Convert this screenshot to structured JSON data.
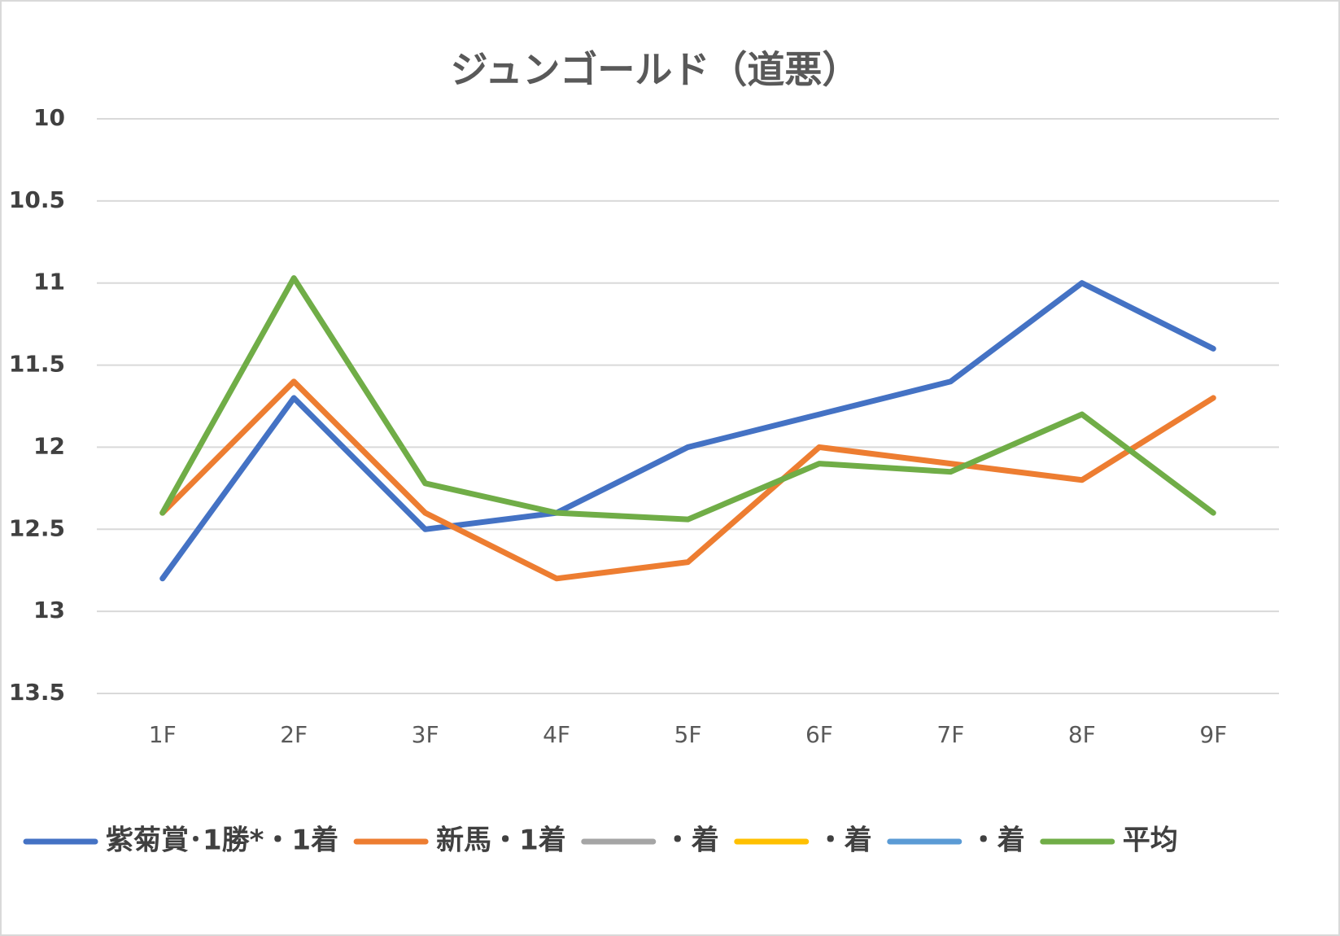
{
  "chart_data": {
    "type": "line",
    "title": "ジュンゴールド（道悪）",
    "categories": [
      "1F",
      "2F",
      "3F",
      "4F",
      "5F",
      "6F",
      "7F",
      "8F",
      "9F"
    ],
    "series": [
      {
        "name": "紫菊賞･1勝*・1着",
        "color": "#4472c4",
        "values": [
          12.8,
          11.7,
          12.5,
          12.4,
          12.0,
          11.8,
          11.6,
          11.0,
          11.4
        ]
      },
      {
        "name": "新馬・1着",
        "color": "#ed7d31",
        "values": [
          12.4,
          11.6,
          12.4,
          12.8,
          12.7,
          12.0,
          12.1,
          12.2,
          11.7
        ]
      },
      {
        "name": "・着",
        "color": "#a5a5a5",
        "values": [
          null,
          null,
          null,
          null,
          null,
          null,
          null,
          null,
          null
        ]
      },
      {
        "name": "・着",
        "color": "#ffc000",
        "values": [
          null,
          null,
          null,
          null,
          null,
          null,
          null,
          null,
          null
        ]
      },
      {
        "name": "・着",
        "color": "#5b9bd5",
        "values": [
          null,
          null,
          null,
          null,
          null,
          null,
          null,
          null,
          null
        ]
      },
      {
        "name": "平均",
        "color": "#70ad47",
        "values": [
          12.4,
          10.97,
          12.22,
          12.4,
          12.44,
          12.1,
          12.15,
          11.8,
          12.4
        ]
      }
    ],
    "ylim": [
      10,
      13.5
    ],
    "y_inverted": true,
    "yticks": [
      10,
      10.5,
      11,
      11.5,
      12,
      12.5,
      13,
      13.5
    ],
    "grid": true,
    "legend": "bottom"
  }
}
